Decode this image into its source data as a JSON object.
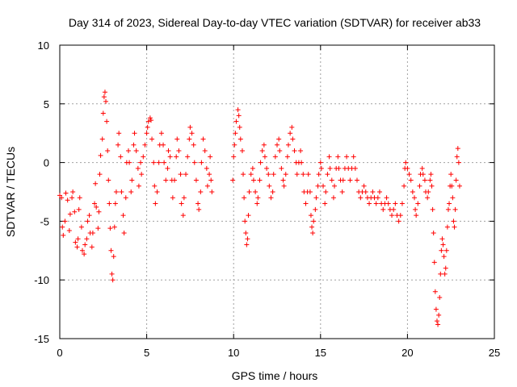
{
  "chart_data": {
    "type": "scatter",
    "title": "Day 314 of 2023, Sidereal Day-to-day VTEC variation (SDTVAR) for receiver ab33",
    "xlabel": "GPS time / hours",
    "ylabel": "SDTVAR / TECUs",
    "xlim": [
      0,
      25
    ],
    "ylim": [
      -15,
      10
    ],
    "x_ticks": [
      0,
      5,
      10,
      15,
      20,
      25
    ],
    "y_ticks": [
      -15,
      -10,
      -5,
      0,
      5,
      10
    ],
    "x_tick_labels": [
      "0",
      "5",
      "10",
      "15",
      "20",
      "25"
    ],
    "y_tick_labels": [
      "-15",
      "-10",
      "-5",
      "0",
      "5",
      "10"
    ],
    "grid": true,
    "marker": "+",
    "series": [
      {
        "name": "SDTVAR",
        "color": "#ff0000",
        "points": [
          [
            0.0,
            -2.8
          ],
          [
            0.1,
            -3.0
          ],
          [
            0.15,
            -5.5
          ],
          [
            0.2,
            -6.2
          ],
          [
            0.3,
            -5.0
          ],
          [
            0.35,
            -2.6
          ],
          [
            0.45,
            -3.2
          ],
          [
            0.55,
            -5.8
          ],
          [
            0.6,
            -4.4
          ],
          [
            0.7,
            -3.0
          ],
          [
            0.75,
            -2.5
          ],
          [
            0.85,
            -4.2
          ],
          [
            0.9,
            -6.8
          ],
          [
            1.0,
            -7.2
          ],
          [
            1.05,
            -6.5
          ],
          [
            1.1,
            -4.0
          ],
          [
            1.15,
            -3.0
          ],
          [
            1.25,
            -5.5
          ],
          [
            1.3,
            -7.5
          ],
          [
            1.4,
            -7.8
          ],
          [
            1.45,
            -7.0
          ],
          [
            1.55,
            -6.5
          ],
          [
            1.6,
            -5.0
          ],
          [
            1.7,
            -4.5
          ],
          [
            1.75,
            -6.0
          ],
          [
            1.85,
            -7.2
          ],
          [
            1.9,
            -6.0
          ],
          [
            2.0,
            -3.5
          ],
          [
            2.05,
            -1.8
          ],
          [
            2.1,
            -3.8
          ],
          [
            2.2,
            -5.6
          ],
          [
            2.25,
            -4.2
          ],
          [
            2.3,
            -1.0
          ],
          [
            2.35,
            0.6
          ],
          [
            2.45,
            2.0
          ],
          [
            2.5,
            4.2
          ],
          [
            2.55,
            5.6
          ],
          [
            2.6,
            6.0
          ],
          [
            2.65,
            5.2
          ],
          [
            2.7,
            3.5
          ],
          [
            2.75,
            1.0
          ],
          [
            2.8,
            -1.5
          ],
          [
            2.85,
            -3.5
          ],
          [
            2.9,
            -5.6
          ],
          [
            2.95,
            -7.5
          ],
          [
            3.0,
            -9.5
          ],
          [
            3.05,
            -10.0
          ],
          [
            3.1,
            -8.0
          ],
          [
            3.15,
            -5.5
          ],
          [
            3.2,
            -3.5
          ],
          [
            3.25,
            -2.5
          ],
          [
            3.35,
            1.5
          ],
          [
            3.4,
            2.5
          ],
          [
            3.5,
            0.5
          ],
          [
            3.55,
            -2.5
          ],
          [
            3.65,
            -4.5
          ],
          [
            3.7,
            -6.0
          ],
          [
            3.8,
            -3.0
          ],
          [
            3.85,
            0.0
          ],
          [
            3.95,
            1.0
          ],
          [
            4.0,
            0.0
          ],
          [
            4.1,
            -2.5
          ],
          [
            4.15,
            -1.5
          ],
          [
            4.25,
            1.5
          ],
          [
            4.3,
            2.5
          ],
          [
            4.4,
            1.0
          ],
          [
            4.5,
            -0.5
          ],
          [
            4.55,
            -2.0
          ],
          [
            4.65,
            0.0
          ],
          [
            4.7,
            -1.0
          ],
          [
            4.8,
            0.5
          ],
          [
            4.9,
            1.5
          ],
          [
            5.0,
            2.5
          ],
          [
            5.05,
            3.0
          ],
          [
            5.1,
            3.5
          ],
          [
            5.2,
            3.8
          ],
          [
            5.25,
            3.6
          ],
          [
            5.3,
            2.0
          ],
          [
            5.4,
            0.0
          ],
          [
            5.45,
            -2.0
          ],
          [
            5.5,
            -3.5
          ],
          [
            5.6,
            -2.5
          ],
          [
            5.7,
            0.0
          ],
          [
            5.75,
            1.5
          ],
          [
            5.85,
            2.5
          ],
          [
            5.95,
            1.5
          ],
          [
            6.0,
            0.0
          ],
          [
            6.1,
            -1.5
          ],
          [
            6.2,
            -0.5
          ],
          [
            6.25,
            1.0
          ],
          [
            6.35,
            0.5
          ],
          [
            6.45,
            -1.5
          ],
          [
            6.5,
            -3.0
          ],
          [
            6.6,
            -1.5
          ],
          [
            6.7,
            0.5
          ],
          [
            6.75,
            2.0
          ],
          [
            6.85,
            1.0
          ],
          [
            6.95,
            -1.0
          ],
          [
            7.0,
            -3.5
          ],
          [
            7.1,
            -4.5
          ],
          [
            7.15,
            -3.0
          ],
          [
            7.25,
            -1.0
          ],
          [
            7.35,
            0.5
          ],
          [
            7.45,
            2.0
          ],
          [
            7.5,
            3.0
          ],
          [
            7.6,
            2.5
          ],
          [
            7.7,
            1.5
          ],
          [
            7.75,
            0.0
          ],
          [
            7.85,
            -1.5
          ],
          [
            7.95,
            -3.5
          ],
          [
            8.0,
            -4.0
          ],
          [
            8.1,
            -2.5
          ],
          [
            8.15,
            0.0
          ],
          [
            8.25,
            2.0
          ],
          [
            8.35,
            1.0
          ],
          [
            8.45,
            -0.5
          ],
          [
            8.5,
            -2.0
          ],
          [
            8.6,
            -1.0
          ],
          [
            8.65,
            0.5
          ],
          [
            8.7,
            -1.5
          ],
          [
            8.75,
            -2.5
          ],
          [
            9.95,
            -1.5
          ],
          [
            10.0,
            0.5
          ],
          [
            10.05,
            1.5
          ],
          [
            10.1,
            2.5
          ],
          [
            10.15,
            3.5
          ],
          [
            10.25,
            4.5
          ],
          [
            10.3,
            4.0
          ],
          [
            10.35,
            3.0
          ],
          [
            10.4,
            2.0
          ],
          [
            10.5,
            1.0
          ],
          [
            10.55,
            -1.0
          ],
          [
            10.6,
            -3.0
          ],
          [
            10.65,
            -5.0
          ],
          [
            10.7,
            -6.0
          ],
          [
            10.75,
            -7.0
          ],
          [
            10.8,
            -6.5
          ],
          [
            10.85,
            -4.5
          ],
          [
            10.9,
            -2.5
          ],
          [
            11.0,
            -1.0
          ],
          [
            11.1,
            -0.5
          ],
          [
            11.15,
            -1.5
          ],
          [
            11.25,
            -2.5
          ],
          [
            11.35,
            -3.5
          ],
          [
            11.4,
            -3.0
          ],
          [
            11.5,
            -1.5
          ],
          [
            11.55,
            0.0
          ],
          [
            11.65,
            1.0
          ],
          [
            11.75,
            1.5
          ],
          [
            11.8,
            0.5
          ],
          [
            11.9,
            -0.5
          ],
          [
            12.0,
            -1.0
          ],
          [
            12.05,
            -2.0
          ],
          [
            12.15,
            -3.0
          ],
          [
            12.25,
            -2.5
          ],
          [
            12.3,
            -1.0
          ],
          [
            12.4,
            0.5
          ],
          [
            12.5,
            1.5
          ],
          [
            12.6,
            2.0
          ],
          [
            12.65,
            1.0
          ],
          [
            12.75,
            -0.5
          ],
          [
            12.85,
            -1.5
          ],
          [
            12.9,
            -2.0
          ],
          [
            13.0,
            -1.0
          ],
          [
            13.1,
            0.5
          ],
          [
            13.15,
            1.5
          ],
          [
            13.25,
            2.5
          ],
          [
            13.35,
            3.0
          ],
          [
            13.4,
            2.0
          ],
          [
            13.5,
            1.0
          ],
          [
            13.6,
            0.0
          ],
          [
            13.65,
            -1.0
          ],
          [
            13.75,
            0.0
          ],
          [
            13.85,
            1.0
          ],
          [
            13.9,
            0.0
          ],
          [
            14.0,
            -1.0
          ],
          [
            14.05,
            -2.5
          ],
          [
            14.15,
            -3.5
          ],
          [
            14.25,
            -2.5
          ],
          [
            14.3,
            -1.0
          ],
          [
            14.4,
            -2.5
          ],
          [
            14.45,
            -4.5
          ],
          [
            14.5,
            -5.5
          ],
          [
            14.55,
            -6.0
          ],
          [
            14.6,
            -5.0
          ],
          [
            14.7,
            -4.0
          ],
          [
            14.75,
            -3.0
          ],
          [
            14.85,
            -2.0
          ],
          [
            14.9,
            -1.0
          ],
          [
            15.0,
            0.0
          ],
          [
            15.05,
            -0.5
          ],
          [
            15.15,
            -2.0
          ],
          [
            15.25,
            -3.5
          ],
          [
            15.3,
            -2.5
          ],
          [
            15.4,
            -1.0
          ],
          [
            15.5,
            0.5
          ],
          [
            15.55,
            -0.5
          ],
          [
            15.65,
            -1.5
          ],
          [
            15.75,
            -3.0
          ],
          [
            15.8,
            -2.0
          ],
          [
            15.9,
            -0.5
          ],
          [
            16.0,
            0.5
          ],
          [
            16.05,
            -0.5
          ],
          [
            16.15,
            -1.5
          ],
          [
            16.25,
            -2.5
          ],
          [
            16.3,
            -1.5
          ],
          [
            16.4,
            -0.5
          ],
          [
            16.5,
            0.5
          ],
          [
            16.6,
            -0.5
          ],
          [
            16.7,
            -1.5
          ],
          [
            16.8,
            -0.5
          ],
          [
            16.9,
            0.5
          ],
          [
            17.0,
            -0.5
          ],
          [
            17.1,
            -1.5
          ],
          [
            17.2,
            -2.5
          ],
          [
            17.3,
            -3.0
          ],
          [
            17.4,
            -2.5
          ],
          [
            17.5,
            -2.0
          ],
          [
            17.6,
            -2.5
          ],
          [
            17.7,
            -3.0
          ],
          [
            17.8,
            -3.5
          ],
          [
            17.9,
            -3.0
          ],
          [
            18.0,
            -2.5
          ],
          [
            18.1,
            -3.0
          ],
          [
            18.2,
            -3.5
          ],
          [
            18.3,
            -3.0
          ],
          [
            18.4,
            -2.5
          ],
          [
            18.5,
            -3.5
          ],
          [
            18.6,
            -4.0
          ],
          [
            18.7,
            -3.5
          ],
          [
            18.8,
            -3.0
          ],
          [
            18.9,
            -3.5
          ],
          [
            19.0,
            -4.0
          ],
          [
            19.1,
            -4.5
          ],
          [
            19.2,
            -4.0
          ],
          [
            19.3,
            -3.5
          ],
          [
            19.4,
            -4.5
          ],
          [
            19.5,
            -5.0
          ],
          [
            19.6,
            -4.5
          ],
          [
            19.7,
            -3.5
          ],
          [
            19.8,
            -2.0
          ],
          [
            19.85,
            -0.5
          ],
          [
            19.9,
            0.0
          ],
          [
            20.0,
            -0.5
          ],
          [
            20.1,
            -1.0
          ],
          [
            20.2,
            -1.5
          ],
          [
            20.3,
            -2.5
          ],
          [
            20.4,
            -3.0
          ],
          [
            20.45,
            -4.0
          ],
          [
            20.5,
            -4.5
          ],
          [
            20.6,
            -3.5
          ],
          [
            20.7,
            -2.0
          ],
          [
            20.75,
            -1.0
          ],
          [
            20.85,
            -0.5
          ],
          [
            20.9,
            -1.0
          ],
          [
            21.0,
            -1.5
          ],
          [
            21.05,
            -2.5
          ],
          [
            21.15,
            -3.0
          ],
          [
            21.2,
            -2.5
          ],
          [
            21.3,
            -1.5
          ],
          [
            21.35,
            -1.0
          ],
          [
            21.4,
            -2.0
          ],
          [
            21.45,
            -4.0
          ],
          [
            21.5,
            -6.0
          ],
          [
            21.55,
            -8.5
          ],
          [
            21.6,
            -11.0
          ],
          [
            21.65,
            -12.5
          ],
          [
            21.7,
            -13.5
          ],
          [
            21.75,
            -13.8
          ],
          [
            21.8,
            -13.0
          ],
          [
            21.85,
            -11.5
          ],
          [
            21.9,
            -9.5
          ],
          [
            21.95,
            -7.5
          ],
          [
            22.0,
            -6.5
          ],
          [
            22.05,
            -7.0
          ],
          [
            22.1,
            -8.0
          ],
          [
            22.15,
            -9.5
          ],
          [
            22.2,
            -9.0
          ],
          [
            22.25,
            -7.5
          ],
          [
            22.3,
            -5.5
          ],
          [
            22.35,
            -4.0
          ],
          [
            22.4,
            -3.5
          ],
          [
            22.45,
            -2.0
          ],
          [
            22.5,
            -1.0
          ],
          [
            22.55,
            -2.0
          ],
          [
            22.6,
            -3.0
          ],
          [
            22.65,
            -5.0
          ],
          [
            22.7,
            -5.5
          ],
          [
            22.75,
            -4.0
          ],
          [
            22.8,
            -1.5
          ],
          [
            22.85,
            0.5
          ],
          [
            22.9,
            1.2
          ],
          [
            22.95,
            0.0
          ],
          [
            23.0,
            -2.0
          ]
        ]
      }
    ]
  }
}
